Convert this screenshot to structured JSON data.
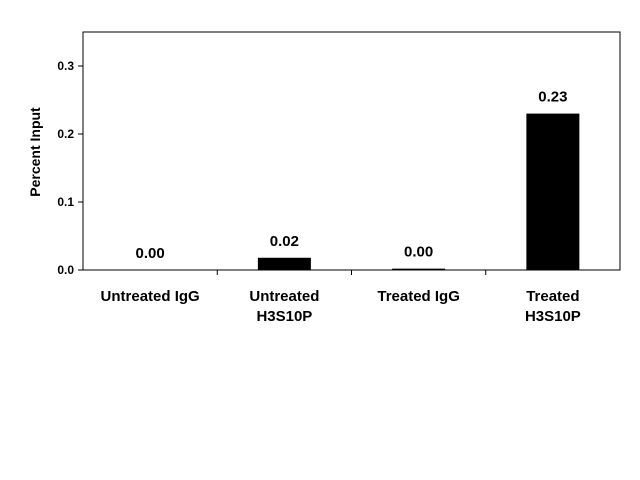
{
  "chart_data": {
    "type": "bar",
    "categories": [
      [
        "Untreated IgG"
      ],
      [
        "Untreated",
        "H3S10P"
      ],
      [
        "Treated IgG"
      ],
      [
        "Treated",
        "H3S10P"
      ]
    ],
    "values": [
      0.0,
      0.018,
      0.002,
      0.23
    ],
    "data_labels": [
      "0.00",
      "0.02",
      "0.00",
      "0.23"
    ],
    "title": "",
    "xlabel": "",
    "ylabel": "Percent Input",
    "ylim": [
      0,
      0.35
    ],
    "yticks": [
      0.0,
      0.1,
      0.2,
      0.3
    ],
    "ytick_labels": [
      "0.0",
      "0.1",
      "0.2",
      "0.3"
    ],
    "grid": false,
    "legend": "none",
    "bar_color": "#000000"
  }
}
